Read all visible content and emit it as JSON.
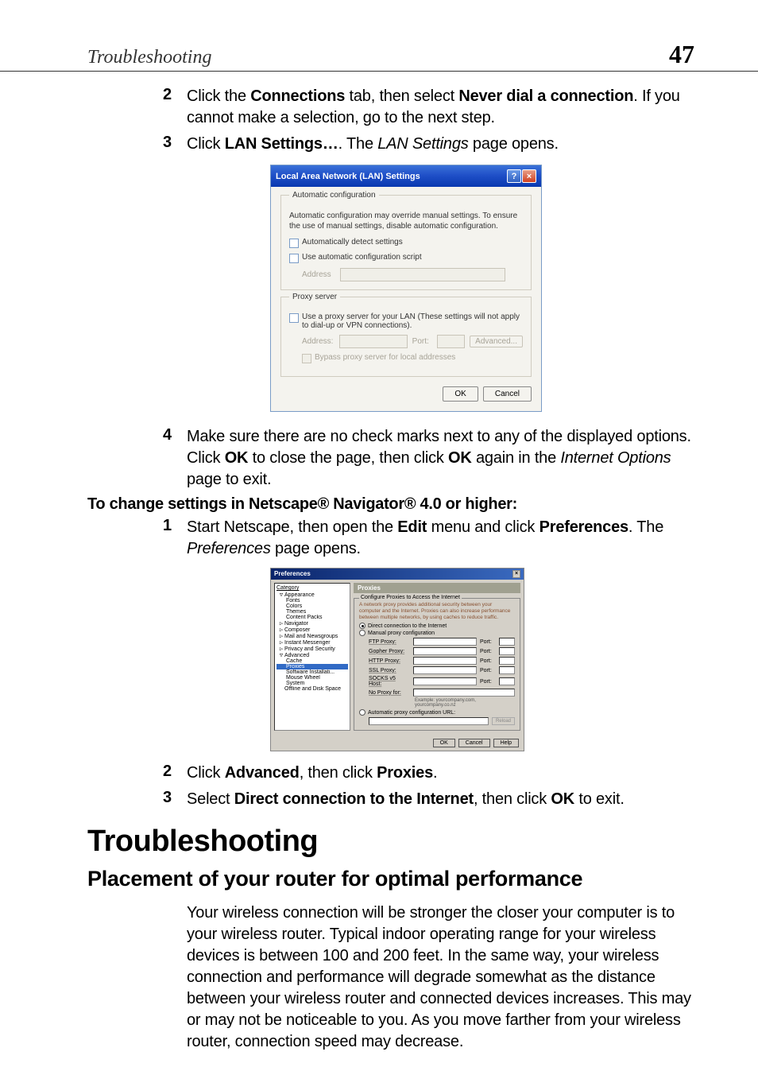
{
  "header": {
    "title": "Troubleshooting",
    "page_number": "47"
  },
  "steps_a": [
    {
      "num": "2",
      "html": "Click the <b>Connections</b> tab, then select <b>Never dial a connection</b>. If you cannot make a selection, go to the next step."
    },
    {
      "num": "3",
      "html": "Click <b>LAN Settings…</b>. The <i>LAN Settings</i> page opens."
    }
  ],
  "lan_dialog": {
    "title": "Local Area Network (LAN) Settings",
    "group1_title": "Automatic configuration",
    "group1_desc": "Automatic configuration may override manual settings. To ensure the use of manual settings, disable automatic configuration.",
    "check1": "Automatically detect settings",
    "check2": "Use automatic configuration script",
    "address_label": "Address",
    "group2_title": "Proxy server",
    "check3": "Use a proxy server for your LAN (These settings will not apply to dial-up or VPN connections).",
    "address2_label": "Address:",
    "port_label": "Port:",
    "advanced_btn": "Advanced...",
    "check4": "Bypass proxy server for local addresses",
    "ok": "OK",
    "cancel": "Cancel"
  },
  "steps_b": [
    {
      "num": "4",
      "html": "Make sure there are no check marks next to any of the displayed options. Click <b>OK</b> to close the page, then click <b>OK</b> again in the <i>Internet Options</i> page to exit."
    }
  ],
  "sub_heading": "To change settings in Netscape® Navigator® 4.0 or higher:",
  "steps_c": [
    {
      "num": "1",
      "html": "Start Netscape, then open the <b>Edit</b> menu and click <b>Preferences</b>. The <i>Preferences</i> page opens."
    }
  ],
  "prefs_dialog": {
    "title": "Preferences",
    "cat_header": "Category",
    "tree": [
      {
        "label": "Appearance",
        "exp": "▽",
        "indent": 0
      },
      {
        "label": "Fonts",
        "indent": 1
      },
      {
        "label": "Colors",
        "indent": 1
      },
      {
        "label": "Themes",
        "indent": 1
      },
      {
        "label": "Content Packs",
        "indent": 1
      },
      {
        "label": "Navigator",
        "exp": "▷",
        "indent": 0
      },
      {
        "label": "Composer",
        "exp": "▷",
        "indent": 0
      },
      {
        "label": "Mail and Newsgroups",
        "exp": "▷",
        "indent": 0
      },
      {
        "label": "Instant Messenger",
        "exp": "▷",
        "indent": 0
      },
      {
        "label": "Privacy and Security",
        "exp": "▷",
        "indent": 0
      },
      {
        "label": "Advanced",
        "exp": "▽",
        "indent": 0
      },
      {
        "label": "Cache",
        "indent": 1
      },
      {
        "label": "Proxies",
        "indent": 1,
        "selected": true
      },
      {
        "label": "Software Installati...",
        "indent": 1
      },
      {
        "label": "Mouse Wheel",
        "indent": 1
      },
      {
        "label": "System",
        "indent": 1
      },
      {
        "label": "Offline and Disk Space",
        "indent": 0
      }
    ],
    "panel_title": "Proxies",
    "fieldset_title": "Configure Proxies to Access the Internet",
    "desc": "A network proxy provides additional security between your computer and the Internet. Proxies can also increase performance between multiple networks, by using caches to reduce traffic.",
    "radio1": "Direct connection to the Internet",
    "radio2": "Manual proxy configuration",
    "proxy_rows": [
      {
        "label": "FTP Proxy:",
        "port": "Port:"
      },
      {
        "label": "Gopher Proxy:",
        "port": "Port:"
      },
      {
        "label": "HTTP Proxy:",
        "port": "Port:"
      },
      {
        "label": "SSL Proxy:",
        "port": "Port:"
      },
      {
        "label": "SOCKS v5 Host:",
        "port": "Port:"
      }
    ],
    "no_proxy": "No Proxy for:",
    "example": "Example: yourcompany.com, yourcompany.co.nz",
    "radio3": "Automatic proxy configuration URL:",
    "reload": "Reload",
    "ok": "OK",
    "cancel": "Cancel",
    "help": "Help"
  },
  "steps_d": [
    {
      "num": "2",
      "html": "Click <b>Advanced</b>, then click <b>Proxies</b>."
    },
    {
      "num": "3",
      "html": "Select <b>Direct connection to the Internet</b>, then click <b>OK</b> to exit."
    }
  ],
  "h1": "Troubleshooting",
  "h2": "Placement of your router for optimal performance",
  "para": "Your wireless connection will be stronger the closer your computer is to your wireless router. Typical indoor operating range for your wireless devices is between 100 and 200 feet. In the same way, your wireless connection and performance will degrade somewhat as the distance between your wireless router and connected devices increases. This may or may not be noticeable to you. As you move farther from your wireless router, connection speed may decrease."
}
